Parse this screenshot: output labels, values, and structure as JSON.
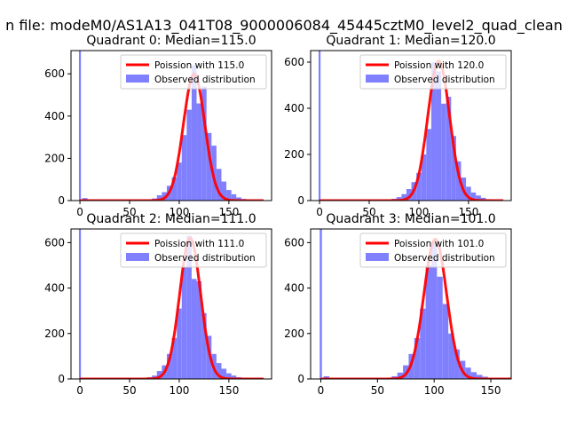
{
  "suptitle": "n file: modeM0/AS1A13_041T08_9000006084_45445cztM0_level2_quad_clean",
  "colors": {
    "observed": "#8080ff",
    "poisson": "#ff0000",
    "axis": "#000000"
  },
  "chart_data": [
    {
      "type": "bar",
      "title": "Quadrant 0: Median=115.0",
      "xlabel": "",
      "ylabel": "",
      "xlim": [
        -9,
        193
      ],
      "ylim": [
        0,
        710
      ],
      "xticks": [
        0,
        50,
        100,
        150
      ],
      "yticks": [
        0,
        200,
        400,
        600
      ],
      "grid": false,
      "legend_position": "top-right",
      "series": [
        {
          "name": "Poission with 115.0",
          "kind": "line",
          "mean": 115.0,
          "peak": 600
        },
        {
          "name": "Observed distribution",
          "kind": "histogram",
          "bin_width": 5,
          "zero_bar": 710,
          "bins": [
            [
              5,
              12
            ],
            [
              10,
              4
            ],
            [
              70,
              4
            ],
            [
              75,
              10
            ],
            [
              80,
              25
            ],
            [
              85,
              40
            ],
            [
              90,
              70
            ],
            [
              95,
              110
            ],
            [
              100,
              180
            ],
            [
              105,
              310
            ],
            [
              110,
              430
            ],
            [
              115,
              640
            ],
            [
              120,
              460
            ],
            [
              125,
              540
            ],
            [
              130,
              320
            ],
            [
              135,
              260
            ],
            [
              140,
              150
            ],
            [
              145,
              90
            ],
            [
              150,
              50
            ],
            [
              155,
              30
            ],
            [
              160,
              15
            ],
            [
              165,
              8
            ],
            [
              170,
              5
            ]
          ]
        }
      ]
    },
    {
      "type": "bar",
      "title": "Quadrant 1: Median=120.0",
      "xlabel": "",
      "ylabel": "",
      "xlim": [
        -9,
        193
      ],
      "ylim": [
        0,
        650
      ],
      "xticks": [
        0,
        50,
        100,
        150
      ],
      "yticks": [
        0,
        200,
        400,
        600
      ],
      "grid": false,
      "legend_position": "top-right",
      "series": [
        {
          "name": "Poission with 120.0",
          "kind": "line",
          "mean": 120.0,
          "peak": 605
        },
        {
          "name": "Observed distribution",
          "kind": "histogram",
          "bin_width": 5,
          "zero_bar": 650,
          "bins": [
            [
              5,
              3
            ],
            [
              75,
              8
            ],
            [
              80,
              15
            ],
            [
              85,
              28
            ],
            [
              90,
              50
            ],
            [
              95,
              80
            ],
            [
              100,
              120
            ],
            [
              105,
              200
            ],
            [
              110,
              310
            ],
            [
              115,
              600
            ],
            [
              120,
              560
            ],
            [
              125,
              420
            ],
            [
              130,
              450
            ],
            [
              135,
              280
            ],
            [
              140,
              170
            ],
            [
              145,
              100
            ],
            [
              150,
              60
            ],
            [
              155,
              35
            ],
            [
              160,
              22
            ],
            [
              165,
              12
            ],
            [
              170,
              6
            ]
          ]
        }
      ]
    },
    {
      "type": "bar",
      "title": "Quadrant 2: Median=111.0",
      "xlabel": "",
      "ylabel": "",
      "xlim": [
        -9,
        193
      ],
      "ylim": [
        0,
        660
      ],
      "xticks": [
        0,
        50,
        100,
        150
      ],
      "yticks": [
        0,
        200,
        400,
        600
      ],
      "grid": false,
      "legend_position": "top-right",
      "series": [
        {
          "name": "Poission with 111.0",
          "kind": "line",
          "mean": 111.0,
          "peak": 620
        },
        {
          "name": "Observed distribution",
          "kind": "histogram",
          "bin_width": 5,
          "zero_bar": 660,
          "bins": [
            [
              70,
              8
            ],
            [
              75,
              15
            ],
            [
              80,
              35
            ],
            [
              85,
              60
            ],
            [
              90,
              110
            ],
            [
              95,
              180
            ],
            [
              100,
              310
            ],
            [
              105,
              490
            ],
            [
              110,
              630
            ],
            [
              115,
              440
            ],
            [
              120,
              430
            ],
            [
              125,
              290
            ],
            [
              130,
              190
            ],
            [
              135,
              110
            ],
            [
              140,
              70
            ],
            [
              145,
              45
            ],
            [
              150,
              25
            ],
            [
              155,
              15
            ],
            [
              160,
              8
            ],
            [
              165,
              5
            ]
          ]
        }
      ]
    },
    {
      "type": "bar",
      "title": "Quadrant 3: Median=101.0",
      "xlabel": "",
      "ylabel": "",
      "xlim": [
        -9,
        168
      ],
      "ylim": [
        0,
        660
      ],
      "xticks": [
        0,
        50,
        100,
        150
      ],
      "yticks": [
        0,
        200,
        400,
        600
      ],
      "grid": false,
      "legend_position": "top-right",
      "series": [
        {
          "name": "Poission with 101.0",
          "kind": "line",
          "mean": 101.0,
          "peak": 615
        },
        {
          "name": "Observed distribution",
          "kind": "histogram",
          "bin_width": 5,
          "zero_bar": 660,
          "bins": [
            [
              5,
              12
            ],
            [
              60,
              4
            ],
            [
              65,
              12
            ],
            [
              70,
              28
            ],
            [
              75,
              60
            ],
            [
              80,
              110
            ],
            [
              85,
              180
            ],
            [
              90,
              310
            ],
            [
              95,
              500
            ],
            [
              100,
              600
            ],
            [
              105,
              450
            ],
            [
              110,
              330
            ],
            [
              115,
              200
            ],
            [
              120,
              130
            ],
            [
              125,
              80
            ],
            [
              130,
              50
            ],
            [
              135,
              30
            ],
            [
              140,
              18
            ],
            [
              145,
              10
            ],
            [
              150,
              5
            ]
          ]
        }
      ]
    }
  ]
}
